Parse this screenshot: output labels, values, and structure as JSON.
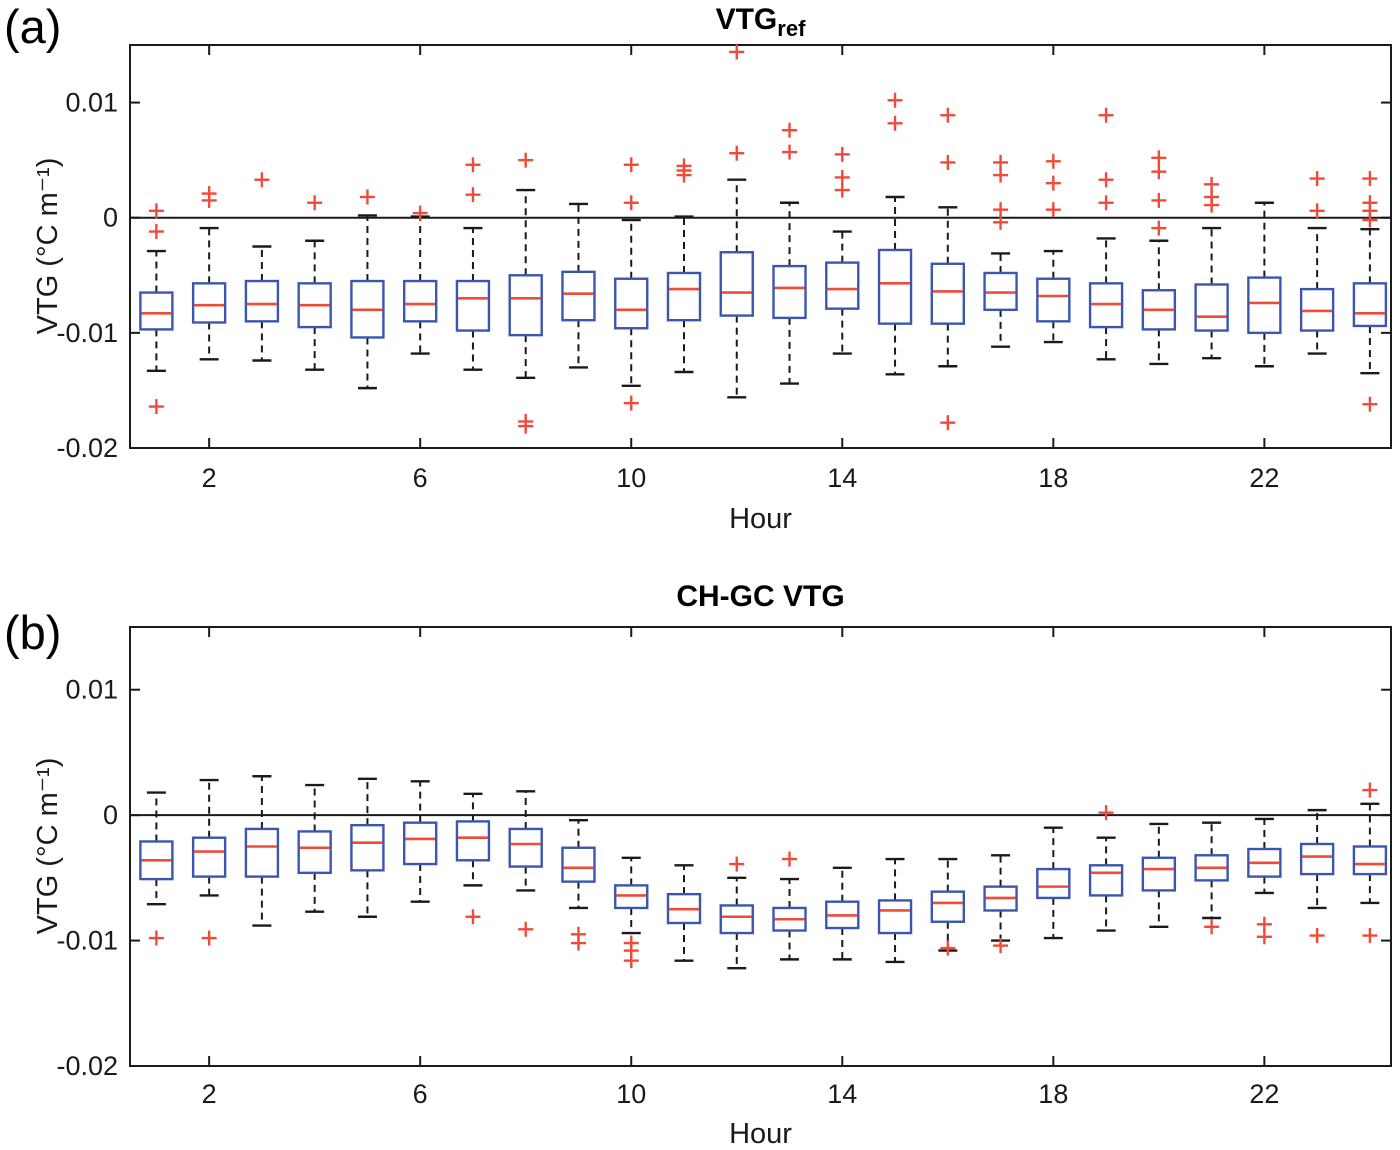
{
  "colors": {
    "box_edge": "#3b56b0",
    "median": "#ee4b3b",
    "outlier": "#ee4b3b",
    "whisker": "#1a1a1a",
    "axis": "#1a1a1a",
    "background": "#ffffff"
  },
  "panels": [
    {
      "corner_label": "(a)",
      "title_main": "VTG",
      "title_sub": "ref",
      "xlabel": "Hour",
      "ylabel": "VTG (°C m⁻¹)"
    },
    {
      "corner_label": "(b)",
      "title_main": "CH-GC VTG",
      "title_sub": "",
      "xlabel": "Hour",
      "ylabel": "VTG (°C m⁻¹)"
    }
  ],
  "chart_data": [
    {
      "type": "boxplot",
      "panel": "(a)",
      "title": "VTG_ref",
      "xlabel": "Hour",
      "ylabel": "VTG (°C m⁻¹)",
      "xlim": [
        0.5,
        24.4
      ],
      "ylim": [
        -0.02,
        0.015
      ],
      "xticks": [
        2,
        6,
        10,
        14,
        18,
        22
      ],
      "xtick_labels": [
        "2",
        "6",
        "10",
        "14",
        "18",
        "22"
      ],
      "ytick_values": [
        0.01,
        0,
        -0.01,
        -0.02
      ],
      "ytick_labels": [
        "0.01",
        "0",
        "-0.01",
        "-0.02"
      ],
      "zero_line": true,
      "grid": false,
      "boxes": [
        {
          "hour": 1,
          "whiskers": [
            -0.0133,
            -0.0029
          ],
          "box": [
            -0.0097,
            -0.0065
          ],
          "median": -0.0083,
          "outliers": [
            0.0006,
            -0.0012,
            -0.0164
          ]
        },
        {
          "hour": 2,
          "whiskers": [
            -0.0123,
            -0.0009
          ],
          "box": [
            -0.0091,
            -0.0057
          ],
          "median": -0.0076,
          "outliers": [
            0.0021,
            0.0015
          ]
        },
        {
          "hour": 3,
          "whiskers": [
            -0.0124,
            -0.0025
          ],
          "box": [
            -0.009,
            -0.0055
          ],
          "median": -0.0075,
          "outliers": [
            0.0033
          ]
        },
        {
          "hour": 4,
          "whiskers": [
            -0.0132,
            -0.002
          ],
          "box": [
            -0.0095,
            -0.0057
          ],
          "median": -0.0076,
          "outliers": [
            0.0013
          ]
        },
        {
          "hour": 5,
          "whiskers": [
            -0.0148,
            0.0002
          ],
          "box": [
            -0.0104,
            -0.0055
          ],
          "median": -0.008,
          "outliers": [
            0.0018
          ]
        },
        {
          "hour": 6,
          "whiskers": [
            -0.0118,
            0.0001
          ],
          "box": [
            -0.009,
            -0.0055
          ],
          "median": -0.0075,
          "outliers": [
            0.0004
          ]
        },
        {
          "hour": 7,
          "whiskers": [
            -0.0132,
            -0.0009
          ],
          "box": [
            -0.0098,
            -0.0055
          ],
          "median": -0.007,
          "outliers": [
            0.0046,
            0.002
          ]
        },
        {
          "hour": 8,
          "whiskers": [
            -0.0139,
            0.0024
          ],
          "box": [
            -0.0102,
            -0.005
          ],
          "median": -0.007,
          "outliers": [
            0.005,
            -0.0177,
            -0.0181
          ]
        },
        {
          "hour": 9,
          "whiskers": [
            -0.013,
            0.0012
          ],
          "box": [
            -0.0089,
            -0.0047
          ],
          "median": -0.0066,
          "outliers": []
        },
        {
          "hour": 10,
          "whiskers": [
            -0.0146,
            -0.0002
          ],
          "box": [
            -0.0096,
            -0.0053
          ],
          "median": -0.008,
          "outliers": [
            0.0046,
            0.0013,
            -0.0161
          ]
        },
        {
          "hour": 11,
          "whiskers": [
            -0.0134,
            0.0001
          ],
          "box": [
            -0.0089,
            -0.0048
          ],
          "median": -0.0062,
          "outliers": [
            0.0045,
            0.0041,
            0.0037
          ]
        },
        {
          "hour": 12,
          "whiskers": [
            -0.0156,
            0.0033
          ],
          "box": [
            -0.0085,
            -0.003
          ],
          "median": -0.0065,
          "outliers": [
            0.0144,
            0.0056
          ]
        },
        {
          "hour": 13,
          "whiskers": [
            -0.0144,
            0.0013
          ],
          "box": [
            -0.0087,
            -0.0042
          ],
          "median": -0.0061,
          "outliers": [
            0.0076,
            0.0057
          ]
        },
        {
          "hour": 14,
          "whiskers": [
            -0.0118,
            -0.0012
          ],
          "box": [
            -0.0079,
            -0.0039
          ],
          "median": -0.0062,
          "outliers": [
            0.0055,
            0.0035,
            0.0024
          ]
        },
        {
          "hour": 15,
          "whiskers": [
            -0.0136,
            0.0018
          ],
          "box": [
            -0.0092,
            -0.0028
          ],
          "median": -0.0057,
          "outliers": [
            0.0102,
            0.0082
          ]
        },
        {
          "hour": 16,
          "whiskers": [
            -0.0129,
            0.0009
          ],
          "box": [
            -0.0092,
            -0.004
          ],
          "median": -0.0064,
          "outliers": [
            0.0089,
            0.0048,
            -0.0178
          ]
        },
        {
          "hour": 17,
          "whiskers": [
            -0.0112,
            -0.0031
          ],
          "box": [
            -0.008,
            -0.0048
          ],
          "median": -0.0065,
          "outliers": [
            0.0048,
            0.0037,
            0.0007,
            -0.0004
          ]
        },
        {
          "hour": 18,
          "whiskers": [
            -0.0108,
            -0.0029
          ],
          "box": [
            -0.009,
            -0.0053
          ],
          "median": -0.0068,
          "outliers": [
            0.0049,
            0.003,
            0.0007
          ]
        },
        {
          "hour": 19,
          "whiskers": [
            -0.0123,
            -0.0018
          ],
          "box": [
            -0.0095,
            -0.0057
          ],
          "median": -0.0075,
          "outliers": [
            0.0089,
            0.0033,
            0.0013
          ]
        },
        {
          "hour": 20,
          "whiskers": [
            -0.0127,
            -0.002
          ],
          "box": [
            -0.0097,
            -0.0063
          ],
          "median": -0.008,
          "outliers": [
            0.0052,
            0.004,
            0.0015,
            -0.0009
          ]
        },
        {
          "hour": 21,
          "whiskers": [
            -0.0122,
            -0.0009
          ],
          "box": [
            -0.0098,
            -0.0058
          ],
          "median": -0.0086,
          "outliers": [
            0.0029,
            0.0018,
            0.0011
          ]
        },
        {
          "hour": 22,
          "whiskers": [
            -0.0129,
            0.0013
          ],
          "box": [
            -0.01,
            -0.0052
          ],
          "median": -0.0074,
          "outliers": []
        },
        {
          "hour": 23,
          "whiskers": [
            -0.0118,
            -0.0009
          ],
          "box": [
            -0.0098,
            -0.0062
          ],
          "median": -0.0081,
          "outliers": [
            0.0034,
            0.0006
          ]
        },
        {
          "hour": 24,
          "whiskers": [
            -0.0135,
            -0.001
          ],
          "box": [
            -0.0094,
            -0.0057
          ],
          "median": -0.0083,
          "outliers": [
            0.0034,
            0.0013,
            0.0006,
            -0.0002,
            -0.0162
          ]
        }
      ]
    },
    {
      "type": "boxplot",
      "panel": "(b)",
      "title": "CH-GC VTG",
      "xlabel": "Hour",
      "ylabel": "VTG (°C m⁻¹)",
      "xlim": [
        0.5,
        24.4
      ],
      "ylim": [
        -0.02,
        0.015
      ],
      "xticks": [
        2,
        6,
        10,
        14,
        18,
        22
      ],
      "xtick_labels": [
        "2",
        "6",
        "10",
        "14",
        "18",
        "22"
      ],
      "ytick_values": [
        0.01,
        0,
        -0.01,
        -0.02
      ],
      "ytick_labels": [
        "0.01",
        "0",
        "-0.01",
        "-0.02"
      ],
      "zero_line": true,
      "grid": false,
      "boxes": [
        {
          "hour": 1,
          "whiskers": [
            -0.0071,
            0.0018
          ],
          "box": [
            -0.0051,
            -0.0021
          ],
          "median": -0.0036,
          "outliers": [
            -0.0098
          ]
        },
        {
          "hour": 2,
          "whiskers": [
            -0.0064,
            0.0028
          ],
          "box": [
            -0.0049,
            -0.0018
          ],
          "median": -0.0029,
          "outliers": [
            -0.0098
          ]
        },
        {
          "hour": 3,
          "whiskers": [
            -0.0088,
            0.0031
          ],
          "box": [
            -0.0049,
            -0.0011
          ],
          "median": -0.0025,
          "outliers": []
        },
        {
          "hour": 4,
          "whiskers": [
            -0.0077,
            0.0024
          ],
          "box": [
            -0.0046,
            -0.0013
          ],
          "median": -0.0026,
          "outliers": []
        },
        {
          "hour": 5,
          "whiskers": [
            -0.0081,
            0.0029
          ],
          "box": [
            -0.0044,
            -0.0008
          ],
          "median": -0.0022,
          "outliers": []
        },
        {
          "hour": 6,
          "whiskers": [
            -0.0069,
            0.0027
          ],
          "box": [
            -0.0039,
            -0.0006
          ],
          "median": -0.0019,
          "outliers": []
        },
        {
          "hour": 7,
          "whiskers": [
            -0.0056,
            0.0017
          ],
          "box": [
            -0.0036,
            -0.0005
          ],
          "median": -0.0018,
          "outliers": [
            -0.0081
          ]
        },
        {
          "hour": 8,
          "whiskers": [
            -0.006,
            0.0019
          ],
          "box": [
            -0.0041,
            -0.0011
          ],
          "median": -0.0023,
          "outliers": [
            -0.0091
          ]
        },
        {
          "hour": 9,
          "whiskers": [
            -0.0074,
            -0.0004
          ],
          "box": [
            -0.0053,
            -0.0026
          ],
          "median": -0.0042,
          "outliers": [
            -0.0095,
            -0.0102
          ]
        },
        {
          "hour": 10,
          "whiskers": [
            -0.0094,
            -0.0034
          ],
          "box": [
            -0.0074,
            -0.0056
          ],
          "median": -0.0064,
          "outliers": [
            -0.0102,
            -0.0108,
            -0.0116
          ]
        },
        {
          "hour": 11,
          "whiskers": [
            -0.0116,
            -0.004
          ],
          "box": [
            -0.0086,
            -0.0063
          ],
          "median": -0.0075,
          "outliers": []
        },
        {
          "hour": 12,
          "whiskers": [
            -0.0122,
            -0.005
          ],
          "box": [
            -0.0094,
            -0.0072
          ],
          "median": -0.0081,
          "outliers": [
            -0.0039
          ]
        },
        {
          "hour": 13,
          "whiskers": [
            -0.0115,
            -0.0051
          ],
          "box": [
            -0.0092,
            -0.0074
          ],
          "median": -0.0083,
          "outliers": [
            -0.0035
          ]
        },
        {
          "hour": 14,
          "whiskers": [
            -0.0115,
            -0.0042
          ],
          "box": [
            -0.009,
            -0.0069
          ],
          "median": -0.008,
          "outliers": []
        },
        {
          "hour": 15,
          "whiskers": [
            -0.0117,
            -0.0035
          ],
          "box": [
            -0.0094,
            -0.0068
          ],
          "median": -0.0076,
          "outliers": []
        },
        {
          "hour": 16,
          "whiskers": [
            -0.0108,
            -0.0035
          ],
          "box": [
            -0.0085,
            -0.0061
          ],
          "median": -0.007,
          "outliers": [
            -0.0106
          ]
        },
        {
          "hour": 17,
          "whiskers": [
            -0.01,
            -0.0032
          ],
          "box": [
            -0.0076,
            -0.0057
          ],
          "median": -0.0066,
          "outliers": [
            -0.0104
          ]
        },
        {
          "hour": 18,
          "whiskers": [
            -0.0098,
            -0.001
          ],
          "box": [
            -0.0066,
            -0.0043
          ],
          "median": -0.0057,
          "outliers": []
        },
        {
          "hour": 19,
          "whiskers": [
            -0.0092,
            -0.0018
          ],
          "box": [
            -0.0064,
            -0.004
          ],
          "median": -0.0046,
          "outliers": [
            0.0002
          ]
        },
        {
          "hour": 20,
          "whiskers": [
            -0.0089,
            -0.0007
          ],
          "box": [
            -0.006,
            -0.0034
          ],
          "median": -0.0043,
          "outliers": []
        },
        {
          "hour": 21,
          "whiskers": [
            -0.0082,
            -0.0006
          ],
          "box": [
            -0.0052,
            -0.0032
          ],
          "median": -0.0042,
          "outliers": [
            -0.0089
          ]
        },
        {
          "hour": 22,
          "whiskers": [
            -0.0062,
            -0.0003
          ],
          "box": [
            -0.0049,
            -0.0027
          ],
          "median": -0.0038,
          "outliers": [
            -0.0087,
            -0.0097
          ]
        },
        {
          "hour": 23,
          "whiskers": [
            -0.0074,
            0.0004
          ],
          "box": [
            -0.0047,
            -0.0023
          ],
          "median": -0.0033,
          "outliers": [
            -0.0096
          ]
        },
        {
          "hour": 24,
          "whiskers": [
            -0.007,
            0.0009
          ],
          "box": [
            -0.0047,
            -0.0025
          ],
          "median": -0.0039,
          "outliers": [
            0.002,
            -0.0096
          ]
        }
      ]
    }
  ]
}
